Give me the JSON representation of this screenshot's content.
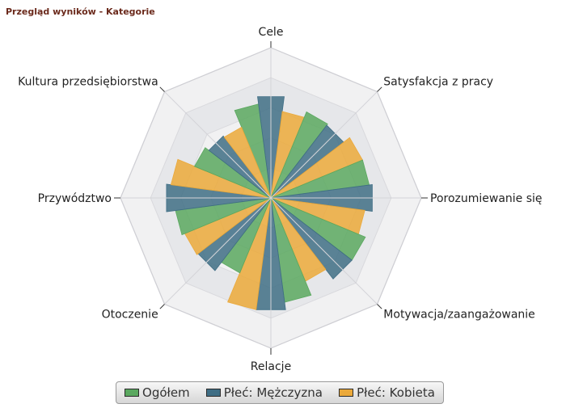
{
  "title": "Przegląd wyników - Kategorie",
  "chart_data": {
    "type": "radar-bar",
    "categories": [
      "Cele",
      "Satysfakcja z pracy",
      "Porozumiewanie się",
      "Motywacja/zaangażowanie",
      "Relacje",
      "Otoczenie",
      "Przywództwo",
      "Kultura przedsiębiorstwa"
    ],
    "series": [
      {
        "name": "Ogółem",
        "color": "#5aa85f",
        "values": [
          0.63,
          0.62,
          0.66,
          0.68,
          0.7,
          0.54,
          0.64,
          0.55
        ]
      },
      {
        "name": "Płeć: Mężczyzna",
        "color": "#3f6e85",
        "values": [
          0.68,
          0.61,
          0.68,
          0.68,
          0.75,
          0.61,
          0.7,
          0.52
        ]
      },
      {
        "name": "Płeć: Kobieta",
        "color": "#eba93a",
        "values": [
          0.58,
          0.66,
          0.63,
          0.6,
          0.75,
          0.62,
          0.67,
          0.51
        ]
      }
    ],
    "grid": true,
    "legend_position": "bottom"
  },
  "legend": {
    "items": [
      {
        "label": "Ogółem",
        "color": "#5aa85f"
      },
      {
        "label": "Płeć: Mężczyzna",
        "color": "#3f6e85"
      },
      {
        "label": "Płeć: Kobieta",
        "color": "#eba93a"
      }
    ]
  }
}
